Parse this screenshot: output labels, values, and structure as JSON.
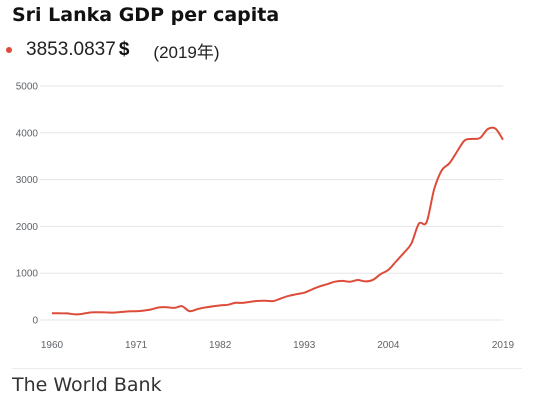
{
  "header": {
    "title": "Sri Lanka GDP per capita",
    "value": "3853.0837",
    "unit": "$",
    "year": "(2019年)"
  },
  "source": "The World Bank",
  "colors": {
    "line": "#dd4b39",
    "grid": "#e6e6e6",
    "tick_text": "#5f6368"
  },
  "chart_data": {
    "type": "line",
    "title": "Sri Lanka GDP per capita",
    "xlabel": "",
    "ylabel": "",
    "xlim": [
      1960,
      2019
    ],
    "ylim": [
      0,
      5000
    ],
    "x_ticks": [
      "1960",
      "1971",
      "1982",
      "1993",
      "2004",
      "2019"
    ],
    "y_ticks": [
      "0",
      "1000",
      "2000",
      "3000",
      "4000",
      "5000"
    ],
    "grid": true,
    "series": [
      {
        "x": [
          1960,
          1961,
          1962,
          1963,
          1964,
          1965,
          1966,
          1967,
          1968,
          1969,
          1970,
          1971,
          1972,
          1973,
          1974,
          1975,
          1976,
          1977,
          1978,
          1979,
          1980,
          1981,
          1982,
          1983,
          1984,
          1985,
          1986,
          1987,
          1988,
          1989,
          1990,
          1991,
          1992,
          1993,
          1994,
          1995,
          1996,
          1997,
          1998,
          1999,
          2000,
          2001,
          2002,
          2003,
          2004,
          2005,
          2006,
          2007,
          2008,
          2009,
          2010,
          2011,
          2012,
          2013,
          2014,
          2015,
          2016,
          2017,
          2018,
          2019
        ],
        "values": [
          143,
          144,
          140,
          121,
          133,
          160,
          164,
          163,
          158,
          170,
          183,
          188,
          200,
          226,
          270,
          274,
          258,
          294,
          187,
          230,
          268,
          290,
          312,
          325,
          368,
          365,
          391,
          409,
          411,
          407,
          464,
          518,
          552,
          583,
          652,
          718,
          764,
          819,
          835,
          818,
          854,
          824,
          860,
          980,
          1070,
          1250,
          1430,
          1630,
          2060,
          2090,
          2800,
          3200,
          3350,
          3600,
          3840,
          3870,
          3890,
          4080,
          4090,
          3853
        ]
      }
    ]
  }
}
